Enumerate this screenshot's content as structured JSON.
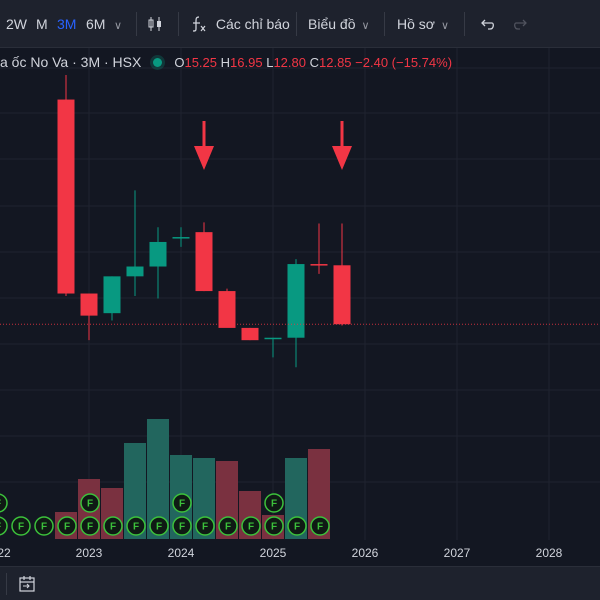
{
  "toolbar": {
    "intervals": [
      {
        "label": "2W",
        "active": false
      },
      {
        "label": "M",
        "active": false
      },
      {
        "label": "3M",
        "active": true
      },
      {
        "label": "6M",
        "active": false
      }
    ],
    "indicators_label": "Các chỉ báo",
    "chart_type_label": "Biểu đồ",
    "profile_label": "Hồ sơ"
  },
  "legend": {
    "symbol": "a ốc No Va · 3M · HSX",
    "o_label": "O",
    "o_value": "15.25",
    "h_label": "H",
    "h_value": "16.95",
    "l_label": "L",
    "l_value": "12.80",
    "c_label": "C",
    "c_value": "12.85",
    "change": "−2.40 (−15.74%)"
  },
  "colors": {
    "up": "#089981",
    "down": "#f23645",
    "up_volume": "#22665e",
    "down_volume": "#7a3140",
    "background": "#131722",
    "grid": "#1f2330",
    "price_line": "#f23645",
    "arrow": "#f23645",
    "event_marker": "#3cc13b"
  },
  "chart_data": {
    "type": "candlestick",
    "interval": "3M",
    "x_labels": [
      "22",
      "2023",
      "2024",
      "2025",
      "2026",
      "2027",
      "2028"
    ],
    "ylim": [
      11.8,
      23.0
    ],
    "last_close": 12.85,
    "candles": [
      {
        "o": 22.0,
        "h": 23.0,
        "l": 14.0,
        "c": 14.1
      },
      {
        "o": 14.1,
        "h": 14.1,
        "l": 12.2,
        "c": 13.2
      },
      {
        "o": 13.3,
        "h": 14.8,
        "l": 13.0,
        "c": 14.8
      },
      {
        "o": 14.8,
        "h": 18.3,
        "l": 14.0,
        "c": 15.2
      },
      {
        "o": 15.2,
        "h": 16.8,
        "l": 13.9,
        "c": 16.2
      },
      {
        "o": 16.4,
        "h": 16.8,
        "l": 16.0,
        "c": 16.4
      },
      {
        "o": 16.6,
        "h": 17.0,
        "l": 14.2,
        "c": 14.2
      },
      {
        "o": 14.2,
        "h": 14.3,
        "l": 12.8,
        "c": 12.7
      },
      {
        "o": 12.7,
        "h": 12.7,
        "l": 12.2,
        "c": 12.2
      },
      {
        "o": 12.3,
        "h": 12.3,
        "l": 11.5,
        "c": 12.3
      },
      {
        "o": 12.3,
        "h": 15.5,
        "l": 11.1,
        "c": 15.3
      },
      {
        "o": 15.3,
        "h": 16.95,
        "l": 14.9,
        "c": 15.25
      },
      {
        "o": 15.25,
        "h": 16.95,
        "l": 12.8,
        "c": 12.85
      }
    ],
    "volume": [
      {
        "v": 0.9,
        "dir": "down"
      },
      {
        "v": 2.0,
        "dir": "down"
      },
      {
        "v": 1.7,
        "dir": "down"
      },
      {
        "v": 3.2,
        "dir": "up"
      },
      {
        "v": 4.0,
        "dir": "up"
      },
      {
        "v": 2.8,
        "dir": "up"
      },
      {
        "v": 2.7,
        "dir": "up"
      },
      {
        "v": 2.6,
        "dir": "down"
      },
      {
        "v": 1.6,
        "dir": "down"
      },
      {
        "v": 0.8,
        "dir": "down"
      },
      {
        "v": 2.7,
        "dir": "up"
      },
      {
        "v": 3.0,
        "dir": "down"
      },
      {
        "v": 0.0,
        "dir": "down"
      }
    ],
    "event_marker_letter": "F",
    "event_markers_bottom": [
      0,
      1,
      2,
      3,
      4,
      5,
      6,
      7,
      8,
      9,
      10,
      11,
      12,
      13,
      14
    ],
    "event_markers_upper": [
      0,
      4,
      8,
      12
    ],
    "arrow_annotations": [
      6,
      12
    ]
  }
}
